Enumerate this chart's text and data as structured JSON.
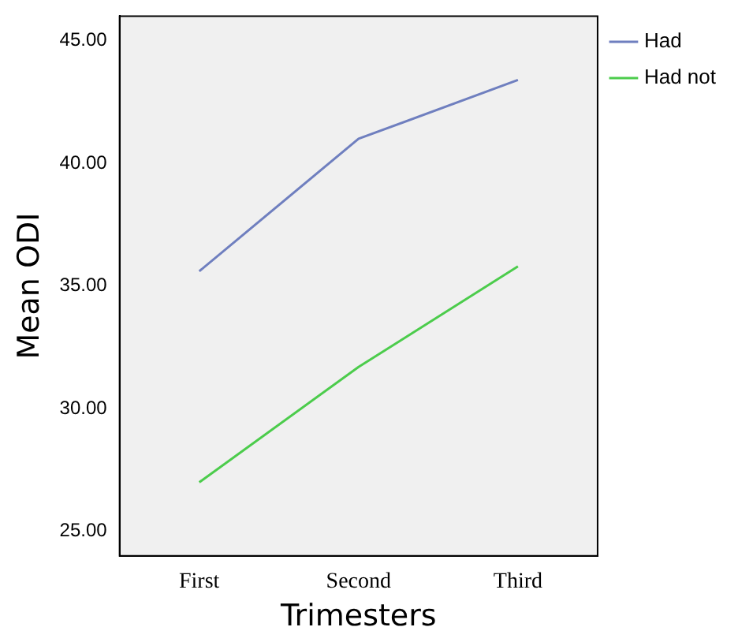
{
  "chart_data": {
    "type": "line",
    "xlabel": "Trimesters",
    "ylabel": "Mean ODI",
    "categories": [
      "First",
      "Second",
      "Third"
    ],
    "series": [
      {
        "name": "Had",
        "color": "#6f7fbf",
        "values": [
          35.6,
          41.0,
          43.4
        ]
      },
      {
        "name": "Had not",
        "color": "#4ccc4c",
        "values": [
          27.0,
          31.7,
          35.8
        ]
      }
    ],
    "ylim": [
      24,
      46
    ],
    "yticks": [
      {
        "value": 25,
        "label": "25.00"
      },
      {
        "value": 30,
        "label": "30.00"
      },
      {
        "value": 35,
        "label": "35.00"
      },
      {
        "value": 40,
        "label": "40.00"
      },
      {
        "value": 45,
        "label": "45.00"
      }
    ],
    "grid": false,
    "legend": "right",
    "marker": "none",
    "line_style": "solid"
  }
}
